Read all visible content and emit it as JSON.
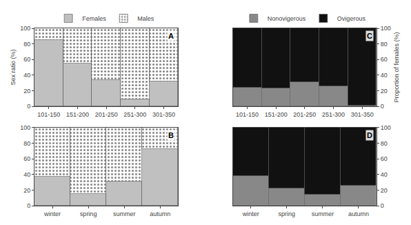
{
  "chart_data": [
    {
      "type": "bar",
      "stacked": true,
      "categories": [
        "101-150",
        "151-200",
        "201-250",
        "251-300",
        "301-350"
      ],
      "series": [
        {
          "name": "Females",
          "color": "#c0c0c0",
          "values": [
            85,
            55,
            34,
            9,
            32
          ]
        },
        {
          "name": "Males",
          "color": "#ffffff",
          "marker": "dotted",
          "values": [
            15,
            45,
            66,
            91,
            68
          ]
        }
      ],
      "ylabel": "Sex ratio (%)",
      "annotations": [
        "A"
      ],
      "ylim": [
        0,
        100
      ],
      "yticks": [
        0,
        20,
        40,
        60,
        80,
        100
      ],
      "grid": false,
      "legend": "top"
    },
    {
      "type": "bar",
      "stacked": true,
      "categories": [
        "winter",
        "spring",
        "summer",
        "autumn"
      ],
      "series": [
        {
          "name": "Females",
          "color": "#c0c0c0",
          "values": [
            37,
            15,
            31,
            73
          ]
        },
        {
          "name": "Males",
          "color": "#ffffff",
          "marker": "dotted",
          "values": [
            63,
            85,
            69,
            27
          ]
        }
      ],
      "annotations": [
        "B"
      ],
      "ylim": [
        0,
        100
      ],
      "yticks": [
        0,
        20,
        40,
        60,
        80,
        100
      ],
      "grid": false
    },
    {
      "type": "bar",
      "stacked": true,
      "categories": [
        "101-150",
        "151-200",
        "201-250",
        "251-300",
        "301-350"
      ],
      "series": [
        {
          "name": "Nonovigerous",
          "color": "#888888",
          "values": [
            24,
            23,
            31,
            26,
            1
          ]
        },
        {
          "name": "Ovigerous",
          "color": "#111111",
          "values": [
            76,
            77,
            69,
            74,
            99
          ]
        }
      ],
      "ylabel": "Proportion of females (%)",
      "annotations": [
        "C"
      ],
      "ylim": [
        0,
        100
      ],
      "yticks": [
        0,
        20,
        40,
        60,
        80,
        100
      ],
      "grid": false,
      "legend": "top"
    },
    {
      "type": "bar",
      "stacked": true,
      "categories": [
        "winter",
        "spring",
        "summer",
        "autumn"
      ],
      "series": [
        {
          "name": "Nonovigerous",
          "color": "#888888",
          "values": [
            38,
            22,
            14,
            26
          ]
        },
        {
          "name": "Ovigerous",
          "color": "#111111",
          "values": [
            62,
            78,
            86,
            74
          ]
        }
      ],
      "annotations": [
        "D"
      ],
      "ylim": [
        0,
        100
      ],
      "yticks": [
        0,
        20,
        40,
        60,
        80,
        100
      ],
      "grid": false
    }
  ]
}
